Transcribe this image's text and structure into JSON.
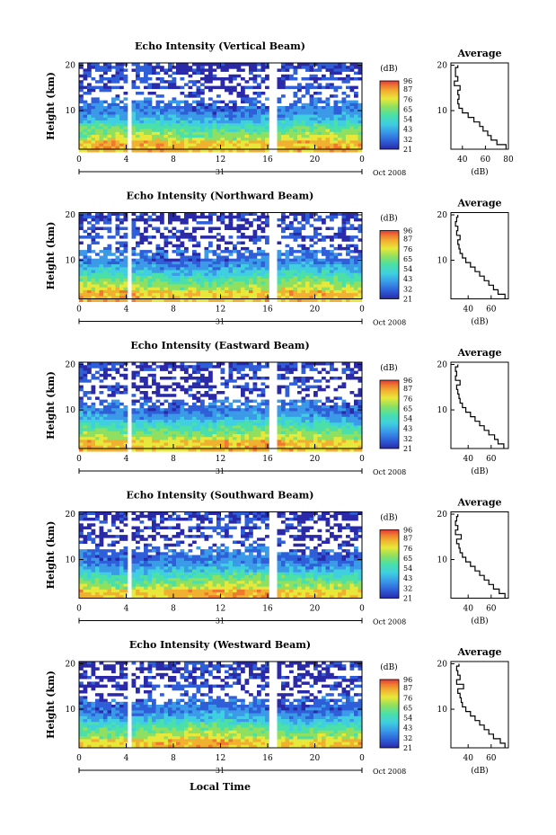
{
  "figure": {
    "xlabel": "Local Time",
    "x_ticks": [
      "0",
      "4",
      "8",
      "12",
      "16",
      "20",
      "0"
    ],
    "x_range": [
      0,
      24
    ],
    "day_label": "31",
    "month_label": "Oct 2008",
    "ylabel": "Height (km)",
    "y_ticks": [
      "10",
      "20"
    ],
    "y_range": [
      1.5,
      20.5
    ],
    "colorbar": {
      "unit": "(dB)",
      "ticks": [
        "96",
        "87",
        "76",
        "65",
        "54",
        "43",
        "32",
        "21"
      ],
      "range": [
        21,
        96
      ],
      "colors": [
        "#2a2aa8",
        "#2f5fd8",
        "#3a9ae8",
        "#3fcfe0",
        "#4ae0a8",
        "#8fe060",
        "#e8e83a",
        "#f0b030",
        "#f07830",
        "#e03a3a"
      ]
    },
    "profile_title": "Average",
    "profile_xlabel": "(dB)"
  },
  "chart_data": [
    {
      "type": "heatmap",
      "title": "Echo Intensity (Vertical Beam)",
      "profile": {
        "x_ticks": [
          "40",
          "60",
          "80"
        ],
        "x_range": [
          30,
          80
        ],
        "heights": [
          2,
          3,
          4,
          5,
          6,
          7,
          8,
          9,
          10,
          11,
          12,
          13,
          14,
          15,
          16,
          17,
          18,
          19,
          20
        ],
        "values": [
          78,
          70,
          65,
          62,
          58,
          55,
          50,
          45,
          40,
          37,
          36,
          37,
          36,
          38,
          33,
          36,
          34,
          34,
          36
        ]
      }
    },
    {
      "type": "heatmap",
      "title": "Echo Intensity (Northward Beam)",
      "profile": {
        "x_ticks": [
          "40",
          "60"
        ],
        "x_range": [
          25,
          75
        ],
        "heights": [
          2,
          3,
          4,
          5,
          6,
          7,
          8,
          9,
          10,
          11,
          12,
          13,
          14,
          15,
          16,
          17,
          18,
          19,
          20
        ],
        "values": [
          72,
          66,
          62,
          58,
          54,
          50,
          46,
          42,
          38,
          35,
          33,
          32,
          31,
          33,
          30,
          31,
          29,
          30,
          31
        ]
      }
    },
    {
      "type": "heatmap",
      "title": "Echo Intensity (Eastward Beam)",
      "profile": {
        "x_ticks": [
          "40",
          "60"
        ],
        "x_range": [
          25,
          75
        ],
        "heights": [
          2,
          3,
          4,
          5,
          6,
          7,
          8,
          9,
          10,
          11,
          12,
          13,
          14,
          15,
          16,
          17,
          18,
          19,
          20
        ],
        "values": [
          71,
          66,
          63,
          58,
          54,
          50,
          46,
          42,
          38,
          35,
          33,
          32,
          31,
          30,
          33,
          29,
          30,
          29,
          31
        ]
      }
    },
    {
      "type": "heatmap",
      "title": "Echo Intensity (Southward Beam)",
      "profile": {
        "x_ticks": [
          "40",
          "60"
        ],
        "x_range": [
          25,
          75
        ],
        "heights": [
          2,
          3,
          4,
          5,
          6,
          7,
          8,
          9,
          10,
          11,
          12,
          13,
          14,
          15,
          16,
          17,
          18,
          19,
          20
        ],
        "values": [
          72,
          67,
          62,
          58,
          54,
          50,
          46,
          42,
          38,
          35,
          33,
          32,
          30,
          34,
          29,
          31,
          29,
          30,
          31
        ]
      }
    },
    {
      "type": "heatmap",
      "title": "Echo Intensity (Westward Beam)",
      "profile": {
        "x_ticks": [
          "40",
          "60"
        ],
        "x_range": [
          25,
          75
        ],
        "heights": [
          2,
          3,
          4,
          5,
          6,
          7,
          8,
          9,
          10,
          11,
          12,
          13,
          14,
          15,
          16,
          17,
          18,
          19,
          20
        ],
        "values": [
          72,
          68,
          62,
          58,
          54,
          50,
          46,
          42,
          38,
          35,
          34,
          33,
          31,
          36,
          30,
          33,
          31,
          30,
          32
        ]
      }
    }
  ]
}
